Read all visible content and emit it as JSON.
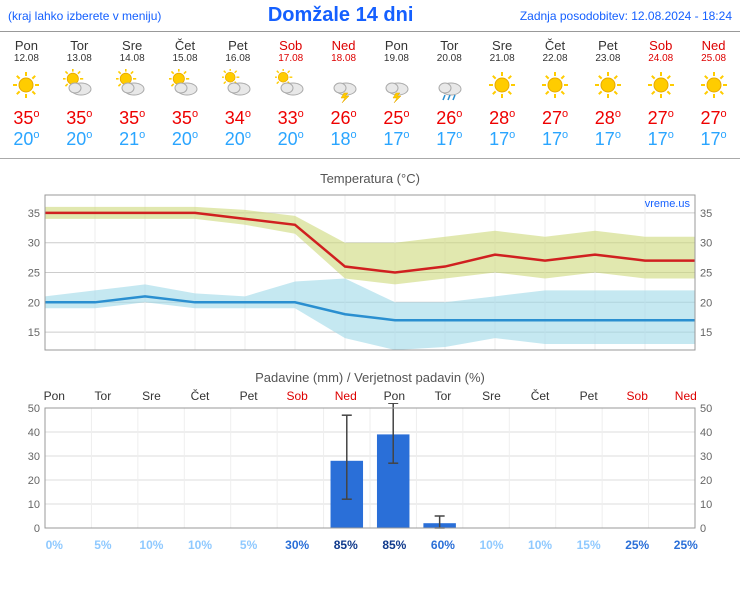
{
  "header": {
    "left": "(kraj lahko izberete v meniju)",
    "title": "Domžale 14 dni",
    "right": "Zadnja posodobitev: 12.08.2024 - 18:24"
  },
  "days": [
    {
      "dow": "Pon",
      "date": "12.08",
      "icon": "sun",
      "hi": 35,
      "lo": 20,
      "weekend": false
    },
    {
      "dow": "Tor",
      "date": "13.08",
      "icon": "suncloud",
      "hi": 35,
      "lo": 20,
      "weekend": false
    },
    {
      "dow": "Sre",
      "date": "14.08",
      "icon": "suncloud",
      "hi": 35,
      "lo": 21,
      "weekend": false
    },
    {
      "dow": "Čet",
      "date": "15.08",
      "icon": "suncloud",
      "hi": 35,
      "lo": 20,
      "weekend": false
    },
    {
      "dow": "Pet",
      "date": "16.08",
      "icon": "cloud",
      "hi": 34,
      "lo": 20,
      "weekend": false
    },
    {
      "dow": "Sob",
      "date": "17.08",
      "icon": "cloud",
      "hi": 33,
      "lo": 20,
      "weekend": true
    },
    {
      "dow": "Ned",
      "date": "18.08",
      "icon": "storm",
      "hi": 26,
      "lo": 18,
      "weekend": true
    },
    {
      "dow": "Pon",
      "date": "19.08",
      "icon": "storm",
      "hi": 25,
      "lo": 17,
      "weekend": false
    },
    {
      "dow": "Tor",
      "date": "20.08",
      "icon": "rain",
      "hi": 26,
      "lo": 17,
      "weekend": false
    },
    {
      "dow": "Sre",
      "date": "21.08",
      "icon": "sun",
      "hi": 28,
      "lo": 17,
      "weekend": false
    },
    {
      "dow": "Čet",
      "date": "22.08",
      "icon": "sun",
      "hi": 27,
      "lo": 17,
      "weekend": false
    },
    {
      "dow": "Pet",
      "date": "23.08",
      "icon": "sun",
      "hi": 28,
      "lo": 17,
      "weekend": false
    },
    {
      "dow": "Sob",
      "date": "24.08",
      "icon": "sun",
      "hi": 27,
      "lo": 17,
      "weekend": true
    },
    {
      "dow": "Ned",
      "date": "25.08",
      "icon": "sun",
      "hi": 27,
      "lo": 17,
      "weekend": true
    }
  ],
  "temp_chart": {
    "title": "Temperatura (°C)",
    "watermark": "vreme.us",
    "ymin": 12,
    "ymax": 38,
    "yticks": [
      15,
      20,
      25,
      30,
      35
    ],
    "hi_line": [
      35,
      35,
      35,
      35,
      34,
      33,
      26,
      25,
      26,
      28,
      27,
      28,
      27,
      27
    ],
    "hi_band_up": [
      36,
      36,
      36,
      36,
      35.5,
      34.5,
      30,
      30,
      31,
      32,
      31,
      32,
      31,
      31
    ],
    "hi_band_dn": [
      34,
      34,
      34,
      34,
      33,
      31.5,
      24,
      23,
      24,
      25,
      24,
      25,
      24,
      24
    ],
    "lo_line": [
      20,
      20,
      21,
      20,
      20,
      20,
      18,
      17,
      17,
      17,
      17,
      17,
      17,
      17
    ],
    "lo_band_up": [
      21,
      22,
      23,
      21.5,
      21,
      23.5,
      24,
      20,
      20,
      21,
      22,
      22,
      22,
      22
    ],
    "lo_band_dn": [
      19,
      19,
      20,
      19,
      19,
      19,
      14,
      12,
      12.5,
      14,
      13,
      13,
      13,
      13
    ],
    "hi_color": "#d02020",
    "hi_band_color": "#cdd97a",
    "lo_color": "#2a8fd0",
    "lo_band_color": "#9fd9e8",
    "grid_color": "#cccccc"
  },
  "precip_chart": {
    "title": "Padavine (mm) / Verjetnost padavin (%)",
    "ymin": 0,
    "ymax": 50,
    "yticks": [
      0,
      10,
      20,
      30,
      40,
      50
    ],
    "bars": [
      0,
      0,
      0,
      0,
      0,
      0,
      28,
      39,
      2,
      0,
      0,
      0,
      0,
      0
    ],
    "err_lo": [
      0,
      0,
      0,
      0,
      0,
      0,
      12,
      27,
      0,
      0,
      0,
      0,
      0,
      0
    ],
    "err_hi": [
      0,
      0,
      0,
      0,
      0,
      0,
      47,
      52,
      5,
      0,
      0,
      0,
      0,
      0
    ],
    "pct": [
      0,
      5,
      10,
      10,
      5,
      30,
      85,
      85,
      60,
      10,
      10,
      15,
      25,
      25
    ],
    "bar_color": "#2a6fd8",
    "err_color": "#444444",
    "grid_color": "#dddddd",
    "pct_colors": {
      "low": "#8fc9ff",
      "mid": "#2a6fd8",
      "high": "#103a8c"
    }
  }
}
